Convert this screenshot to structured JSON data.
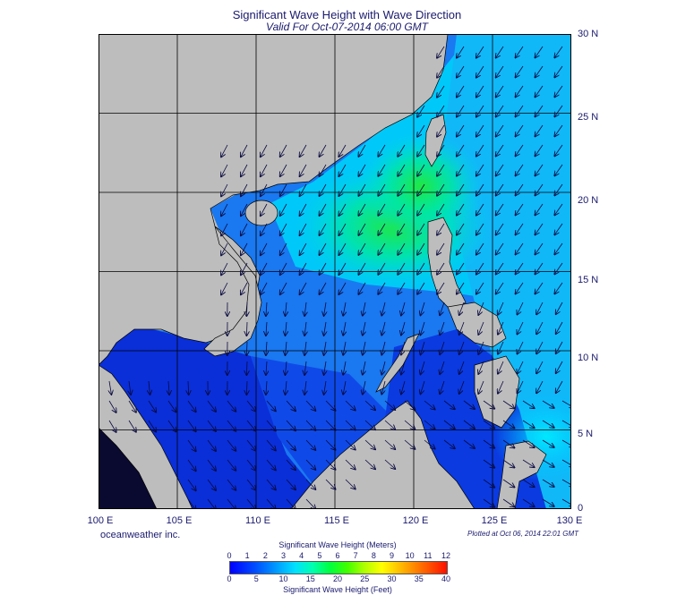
{
  "header": {
    "title": "Significant Wave Height with Wave Direction",
    "subtitle": "Valid For Oct-07-2014 06:00 GMT"
  },
  "map": {
    "lon_range": [
      100,
      130
    ],
    "lat_range": [
      0,
      30
    ],
    "lon_labels": [
      "100 E",
      "105 E",
      "110 E",
      "115 E",
      "120 E",
      "125 E",
      "130 E"
    ],
    "lat_labels": [
      "30 N",
      "25 N",
      "20 N",
      "15 N",
      "10 N",
      "5 N",
      "0"
    ],
    "land_color": "#bdbdbd",
    "grid": true
  },
  "footer": {
    "credit": "oceanweather inc.",
    "plotted": "Plotted at Oct 06, 2014 22:01 GMT"
  },
  "colorbar": {
    "meters_title": "Significant Wave Height (Meters)",
    "feet_title": "Significant Wave Height (Feet)",
    "meters_ticks": [
      "0",
      "1",
      "2",
      "3",
      "4",
      "5",
      "6",
      "7",
      "8",
      "9",
      "10",
      "11",
      "12"
    ],
    "feet_ticks": [
      "0",
      "5",
      "10",
      "15",
      "20",
      "25",
      "30",
      "35",
      "40"
    ]
  }
}
